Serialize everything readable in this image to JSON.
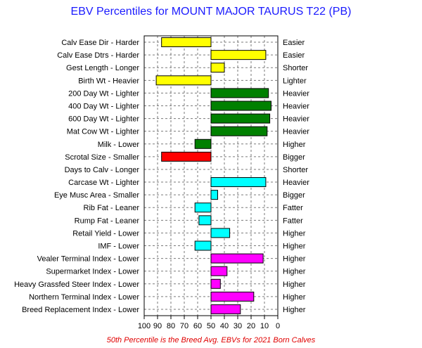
{
  "chart_data": {
    "type": "bar",
    "orientation": "horizontal",
    "title": "EBV Percentiles for MOUNT MAJOR TAURUS T22 (PB)",
    "footnote": "50th Percentile is the Breed Avg. EBVs for 2021 Born Calves",
    "x_ticks": [
      "100",
      "90",
      "80",
      "70",
      "60",
      "50",
      "40",
      "30",
      "20",
      "10",
      "0"
    ],
    "xlim": [
      100,
      0
    ],
    "baseline": 50,
    "grid": true,
    "traits": [
      {
        "left": "Calv Ease Dir - Harder",
        "right": "Easier",
        "value": 87,
        "color": "#ffff00"
      },
      {
        "left": "Calv Ease Dtrs - Harder",
        "right": "Easier",
        "value": 9,
        "color": "#ffff00"
      },
      {
        "left": "Gest Length - Longer",
        "right": "Shorter",
        "value": 40,
        "color": "#ffff00"
      },
      {
        "left": "Birth Wt - Heavier",
        "right": "Lighter",
        "value": 91,
        "color": "#ffff00"
      },
      {
        "left": "200 Day Wt - Lighter",
        "right": "Heavier",
        "value": 7,
        "color": "#008000"
      },
      {
        "left": "400 Day Wt - Lighter",
        "right": "Heavier",
        "value": 5,
        "color": "#008000"
      },
      {
        "left": "600 Day Wt - Lighter",
        "right": "Heavier",
        "value": 6,
        "color": "#008000"
      },
      {
        "left": "Mat Cow Wt - Lighter",
        "right": "Heavier",
        "value": 8,
        "color": "#008000"
      },
      {
        "left": "Milk - Lower",
        "right": "Higher",
        "value": 62,
        "color": "#008000"
      },
      {
        "left": "Scrotal Size - Smaller",
        "right": "Bigger",
        "value": 87,
        "color": "#ff0000"
      },
      {
        "left": "Days to Calv - Longer",
        "right": "Shorter",
        "value": 50,
        "color": "#ff0000"
      },
      {
        "left": "Carcase Wt - Lighter",
        "right": "Heavier",
        "value": 9,
        "color": "#00ffff"
      },
      {
        "left": "Eye Musc Area - Smaller",
        "right": "Bigger",
        "value": 45,
        "color": "#00ffff"
      },
      {
        "left": "Rib Fat - Leaner",
        "right": "Fatter",
        "value": 62,
        "color": "#00ffff"
      },
      {
        "left": "Rump Fat - Leaner",
        "right": "Fatter",
        "value": 59,
        "color": "#00ffff"
      },
      {
        "left": "Retail Yield - Lower",
        "right": "Higher",
        "value": 36,
        "color": "#00ffff"
      },
      {
        "left": "IMF - Lower",
        "right": "Higher",
        "value": 62,
        "color": "#00ffff"
      },
      {
        "left": "Vealer Terminal Index - Lower",
        "right": "Higher",
        "value": 11,
        "color": "#ff00ff"
      },
      {
        "left": "Supermarket Index - Lower",
        "right": "Higher",
        "value": 38,
        "color": "#ff00ff"
      },
      {
        "left": "Heavy Grassfed Steer Index - Lower",
        "right": "Higher",
        "value": 43,
        "color": "#ff00ff"
      },
      {
        "left": "Northern Terminal Index - Lower",
        "right": "Higher",
        "value": 18,
        "color": "#ff00ff"
      },
      {
        "left": "Breed Replacement Index - Lower",
        "right": "Higher",
        "value": 28,
        "color": "#ff00ff"
      }
    ]
  }
}
